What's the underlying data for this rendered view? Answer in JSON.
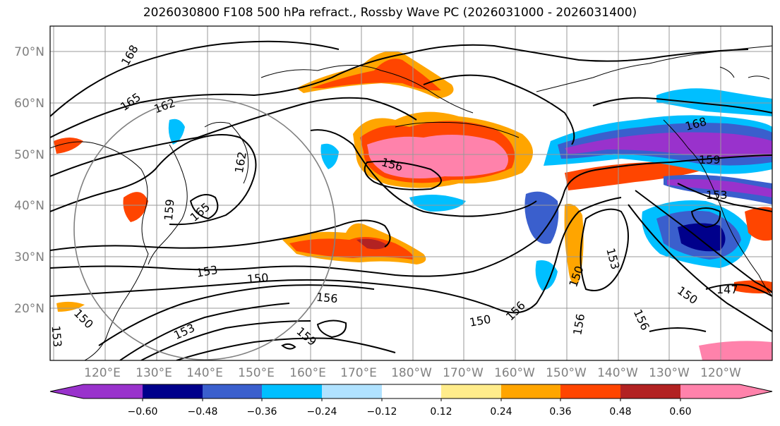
{
  "title": "2026030800 F108 500 hPa refract., Rossby Wave PC (2026031000 - 2026031400)",
  "map": {
    "lat_labels": [
      "70°N",
      "60°N",
      "50°N",
      "40°N",
      "30°N",
      "20°N"
    ],
    "lon_labels": [
      "120°E",
      "130°E",
      "140°E",
      "150°E",
      "160°E",
      "170°E",
      "180°W",
      "170°W",
      "160°W",
      "150°W",
      "140°W",
      "130°W",
      "120°W"
    ],
    "contour_labels": [
      "168",
      "165",
      "162",
      "162",
      "159",
      "165",
      "153",
      "150",
      "156",
      "153",
      "150",
      "159",
      "156",
      "168",
      "159",
      "153",
      "153",
      "150",
      "156",
      "156",
      "147",
      "150",
      "156",
      "150",
      "153"
    ]
  },
  "colorbar": {
    "ticks": [
      "−0.60",
      "−0.48",
      "−0.36",
      "−0.24",
      "−0.12",
      "0.12",
      "0.24",
      "0.36",
      "0.48",
      "0.60"
    ],
    "colors": [
      "#9932CC",
      "#00008B",
      "#3A5FCD",
      "#00BFFF",
      "#B0E2FF",
      "#FFFFFF",
      "#FFEC8B",
      "#FFA500",
      "#FF4500",
      "#B22222",
      "#FF82AB"
    ]
  }
}
